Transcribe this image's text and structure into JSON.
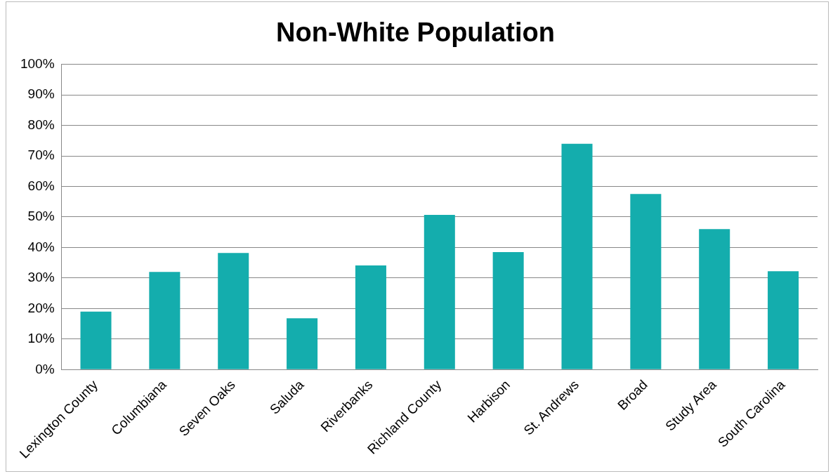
{
  "chart_data": {
    "type": "bar",
    "title": "Non-White Population",
    "categories": [
      "Lexington County",
      "Columbiana",
      "Seven Oaks",
      "Saluda",
      "Riverbanks",
      "Richland County",
      "Harbison",
      "St. Andrews",
      "Broad",
      "Study Area",
      "South Carolina"
    ],
    "values": [
      19,
      32,
      38.2,
      16.8,
      34.1,
      50.7,
      38.5,
      74,
      57.5,
      46,
      32.2
    ],
    "color": "#14adad",
    "ylim": [
      0,
      100
    ],
    "yticks": [
      {
        "value": 0,
        "label": "0%"
      },
      {
        "value": 10,
        "label": "10%"
      },
      {
        "value": 20,
        "label": "20%"
      },
      {
        "value": 30,
        "label": "30%"
      },
      {
        "value": 40,
        "label": "40%"
      },
      {
        "value": 50,
        "label": "50%"
      },
      {
        "value": 60,
        "label": "60%"
      },
      {
        "value": 70,
        "label": "70%"
      },
      {
        "value": 80,
        "label": "80%"
      },
      {
        "value": 90,
        "label": "90%"
      },
      {
        "value": 100,
        "label": "100%"
      }
    ],
    "grid": "y",
    "legend": false
  }
}
